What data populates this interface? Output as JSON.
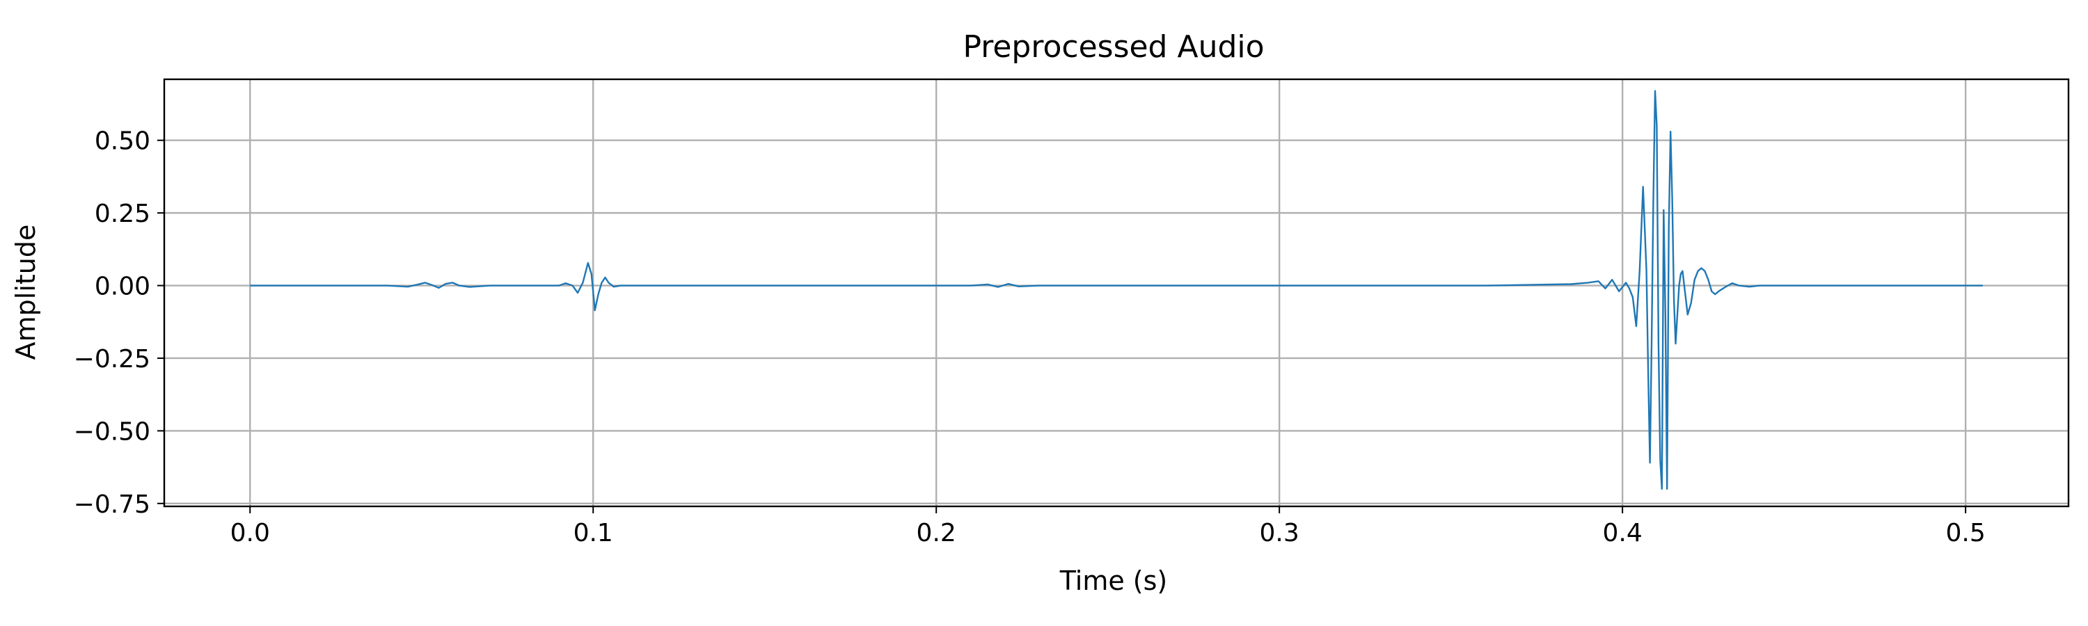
{
  "chart_data": {
    "type": "line",
    "title": "Preprocessed Audio",
    "xlabel": "Time (s)",
    "ylabel": "Amplitude",
    "xlim": [
      -0.025,
      0.53
    ],
    "ylim": [
      -0.76,
      0.71
    ],
    "grid": true,
    "line_color": "#1f77b4",
    "x_ticks": [
      0.0,
      0.1,
      0.2,
      0.3,
      0.4,
      0.5
    ],
    "x_tick_labels": [
      "0.0",
      "0.1",
      "0.2",
      "0.3",
      "0.4",
      "0.5"
    ],
    "y_ticks": [
      0.5,
      0.25,
      0.0,
      -0.25,
      -0.5,
      -0.75
    ],
    "y_tick_labels": [
      "0.50",
      "0.25",
      "0.00",
      "−0.25",
      "−0.50",
      "−0.75"
    ],
    "series": [
      {
        "x": [
          0.0,
          0.02,
          0.04,
          0.046,
          0.049,
          0.051,
          0.053,
          0.055,
          0.057,
          0.059,
          0.061,
          0.064,
          0.07,
          0.08,
          0.09,
          0.092,
          0.094,
          0.0955,
          0.097,
          0.0985,
          0.0995,
          0.1005,
          0.1015,
          0.1025,
          0.1035,
          0.1045,
          0.106,
          0.108,
          0.112,
          0.12,
          0.13,
          0.14,
          0.15,
          0.16,
          0.17,
          0.18,
          0.19,
          0.2,
          0.21,
          0.215,
          0.218,
          0.221,
          0.224,
          0.23,
          0.25,
          0.27,
          0.3,
          0.33,
          0.36,
          0.385,
          0.39,
          0.393,
          0.395,
          0.397,
          0.399,
          0.401,
          0.402,
          0.403,
          0.404,
          0.405,
          0.406,
          0.407,
          0.4075,
          0.408,
          0.4085,
          0.409,
          0.4095,
          0.41,
          0.4105,
          0.411,
          0.4115,
          0.412,
          0.4125,
          0.413,
          0.4135,
          0.414,
          0.4145,
          0.415,
          0.4155,
          0.416,
          0.4165,
          0.417,
          0.4175,
          0.418,
          0.419,
          0.42,
          0.421,
          0.422,
          0.423,
          0.424,
          0.425,
          0.426,
          0.427,
          0.428,
          0.43,
          0.432,
          0.434,
          0.437,
          0.44,
          0.45,
          0.47,
          0.49,
          0.505
        ],
        "y": [
          0.0,
          0.0,
          0.0,
          -0.004,
          0.004,
          0.01,
          0.002,
          -0.008,
          0.006,
          0.01,
          0.0,
          -0.005,
          0.0,
          0.0,
          0.0,
          0.008,
          0.0,
          -0.025,
          0.01,
          0.078,
          0.04,
          -0.085,
          -0.03,
          0.01,
          0.028,
          0.01,
          -0.004,
          0.0,
          0.0,
          0.0,
          0.0,
          0.0,
          0.0,
          0.0,
          0.0,
          0.0,
          0.0,
          0.0,
          0.0,
          0.004,
          -0.005,
          0.006,
          -0.003,
          0.0,
          0.0,
          0.0,
          0.0,
          0.0,
          0.0,
          0.005,
          0.01,
          0.015,
          -0.01,
          0.02,
          -0.02,
          0.01,
          -0.01,
          -0.04,
          -0.14,
          0.05,
          0.34,
          0.05,
          -0.3,
          -0.61,
          -0.2,
          0.3,
          0.67,
          0.55,
          -0.2,
          -0.6,
          -0.7,
          0.26,
          -0.1,
          -0.7,
          0.2,
          0.53,
          0.3,
          -0.05,
          -0.2,
          -0.1,
          0.0,
          0.04,
          0.05,
          0.0,
          -0.1,
          -0.06,
          0.02,
          0.05,
          0.06,
          0.05,
          0.02,
          -0.02,
          -0.03,
          -0.02,
          -0.005,
          0.008,
          0.0,
          -0.004,
          0.0,
          0.0,
          0.0,
          0.0,
          0.0
        ]
      }
    ]
  }
}
